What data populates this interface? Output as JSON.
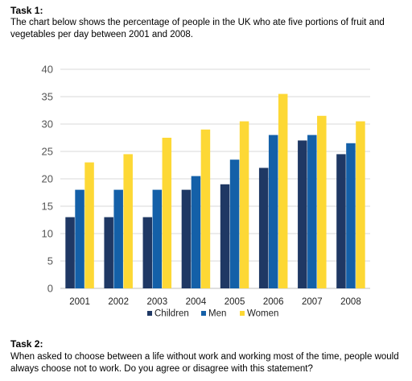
{
  "task1": {
    "heading": "Task 1:",
    "text": "The chart below shows the percentage of people in the UK who ate five portions of fruit and vegetables per day between 2001 and 2008."
  },
  "task2": {
    "heading": "Task 2:",
    "text": "When asked to choose between a life without work and working most of the time, people would always choose not to work. Do you agree or disagree with this statement?"
  },
  "chart_data": {
    "type": "bar",
    "categories": [
      "2001",
      "2002",
      "2003",
      "2004",
      "2005",
      "2006",
      "2007",
      "2008"
    ],
    "series": [
      {
        "name": "Children",
        "color": "#1f3864",
        "values": [
          13,
          13,
          13,
          18,
          19,
          22,
          27,
          24.5
        ]
      },
      {
        "name": "Men",
        "color": "#1460a8",
        "values": [
          18,
          18,
          18,
          20.5,
          23.5,
          28,
          28,
          26.5
        ]
      },
      {
        "name": "Women",
        "color": "#fdd835",
        "values": [
          23,
          24.5,
          27.5,
          29,
          30.5,
          35.5,
          31.5,
          30.5
        ]
      }
    ],
    "ylim": [
      0,
      40
    ],
    "yticks": [
      0,
      5,
      10,
      15,
      20,
      25,
      30,
      35,
      40
    ],
    "grid": true,
    "legend_position": "bottom"
  }
}
